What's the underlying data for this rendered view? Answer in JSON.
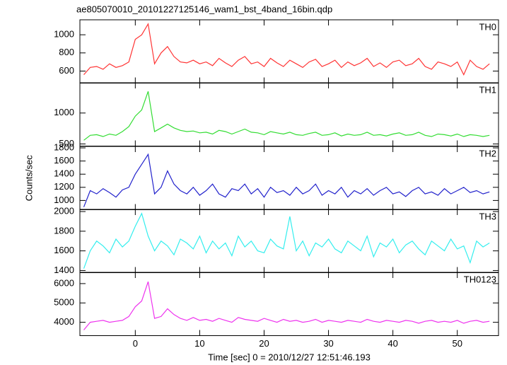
{
  "chart_data": [
    {
      "type": "line",
      "title": "ae805070010_20101227125146_wam1_bst_4band_16bin.qdp",
      "label": "TH0",
      "color": "#ff3333",
      "x": [
        -8,
        -7,
        -6,
        -5,
        -4,
        -3,
        -2,
        -1,
        0,
        1,
        2,
        3,
        4,
        5,
        6,
        7,
        8,
        9,
        10,
        11,
        12,
        13,
        14,
        15,
        16,
        17,
        18,
        19,
        20,
        21,
        22,
        23,
        24,
        25,
        26,
        27,
        28,
        29,
        30,
        31,
        32,
        33,
        34,
        35,
        36,
        37,
        38,
        39,
        40,
        41,
        42,
        43,
        44,
        45,
        46,
        47,
        48,
        49,
        50,
        51,
        52,
        53,
        54,
        55
      ],
      "values": [
        560,
        640,
        650,
        620,
        680,
        640,
        660,
        700,
        950,
        1000,
        1120,
        680,
        800,
        870,
        760,
        700,
        690,
        720,
        680,
        700,
        660,
        740,
        690,
        650,
        720,
        760,
        680,
        700,
        650,
        740,
        690,
        650,
        720,
        680,
        640,
        700,
        730,
        650,
        680,
        720,
        640,
        700,
        660,
        690,
        740,
        650,
        690,
        640,
        700,
        720,
        660,
        680,
        740,
        650,
        620,
        700,
        680,
        650,
        700,
        560,
        720,
        650,
        620,
        680
      ],
      "ylim": [
        467,
        1165
      ],
      "yticks": [
        600,
        800,
        1000
      ]
    },
    {
      "type": "line",
      "label": "TH1",
      "color": "#33dd33",
      "x": [
        -8,
        -7,
        -6,
        -5,
        -4,
        -3,
        -2,
        -1,
        0,
        1,
        2,
        3,
        4,
        5,
        6,
        7,
        8,
        9,
        10,
        11,
        12,
        13,
        14,
        15,
        16,
        17,
        18,
        19,
        20,
        21,
        22,
        23,
        24,
        25,
        26,
        27,
        28,
        29,
        30,
        31,
        32,
        33,
        34,
        35,
        36,
        37,
        38,
        39,
        40,
        41,
        42,
        43,
        44,
        45,
        46,
        47,
        48,
        49,
        50,
        51,
        52,
        53,
        54,
        55
      ],
      "values": [
        560,
        640,
        650,
        620,
        660,
        640,
        700,
        780,
        950,
        1050,
        1350,
        700,
        760,
        820,
        760,
        720,
        700,
        710,
        680,
        690,
        660,
        720,
        700,
        660,
        700,
        740,
        690,
        680,
        650,
        700,
        680,
        660,
        690,
        650,
        640,
        670,
        690,
        640,
        650,
        680,
        630,
        660,
        640,
        650,
        690,
        640,
        650,
        630,
        660,
        680,
        640,
        650,
        690,
        640,
        620,
        660,
        650,
        630,
        660,
        620,
        650,
        640,
        620,
        640
      ],
      "ylim": [
        466,
        1489
      ],
      "yticks": [
        500,
        1000
      ]
    },
    {
      "type": "line",
      "label": "TH2",
      "color": "#2222cc",
      "ylabel": "Counts/sec",
      "x": [
        -8,
        -7,
        -6,
        -5,
        -4,
        -3,
        -2,
        -1,
        0,
        1,
        2,
        3,
        4,
        5,
        6,
        7,
        8,
        9,
        10,
        11,
        12,
        13,
        14,
        15,
        16,
        17,
        18,
        19,
        20,
        21,
        22,
        23,
        24,
        25,
        26,
        27,
        28,
        29,
        30,
        31,
        32,
        33,
        34,
        35,
        36,
        37,
        38,
        39,
        40,
        41,
        42,
        43,
        44,
        45,
        46,
        47,
        48,
        49,
        50,
        51,
        52,
        53,
        54,
        55
      ],
      "values": [
        900,
        1150,
        1100,
        1180,
        1120,
        1050,
        1160,
        1200,
        1400,
        1550,
        1700,
        1100,
        1200,
        1450,
        1250,
        1150,
        1100,
        1200,
        1080,
        1150,
        1250,
        1100,
        1050,
        1180,
        1150,
        1250,
        1100,
        1180,
        1050,
        1200,
        1120,
        1150,
        1080,
        1200,
        1100,
        1150,
        1250,
        1080,
        1150,
        1100,
        1200,
        1050,
        1150,
        1100,
        1180,
        1080,
        1150,
        1200,
        1100,
        1130,
        1060,
        1150,
        1200,
        1100,
        1130,
        1080,
        1180,
        1100,
        1150,
        1200,
        1120,
        1150,
        1100,
        1130
      ],
      "ylim": [
        859,
        1822
      ],
      "yticks": [
        1000,
        1200,
        1400,
        1600,
        1800
      ]
    },
    {
      "type": "line",
      "label": "TH3",
      "color": "#33eeee",
      "x": [
        -8,
        -7,
        -6,
        -5,
        -4,
        -3,
        -2,
        -1,
        0,
        1,
        2,
        3,
        4,
        5,
        6,
        7,
        8,
        9,
        10,
        11,
        12,
        13,
        14,
        15,
        16,
        17,
        18,
        19,
        20,
        21,
        22,
        23,
        24,
        25,
        26,
        27,
        28,
        29,
        30,
        31,
        32,
        33,
        34,
        35,
        36,
        37,
        38,
        39,
        40,
        41,
        42,
        43,
        44,
        45,
        46,
        47,
        48,
        49,
        50,
        51,
        52,
        53,
        54,
        55
      ],
      "values": [
        1420,
        1600,
        1700,
        1650,
        1580,
        1720,
        1640,
        1700,
        1850,
        1980,
        1750,
        1600,
        1700,
        1650,
        1560,
        1720,
        1680,
        1620,
        1750,
        1580,
        1700,
        1620,
        1680,
        1550,
        1750,
        1640,
        1700,
        1600,
        1580,
        1720,
        1650,
        1620,
        1950,
        1600,
        1700,
        1550,
        1680,
        1640,
        1720,
        1620,
        1580,
        1700,
        1650,
        1600,
        1750,
        1540,
        1680,
        1640,
        1720,
        1580,
        1660,
        1700,
        1620,
        1560,
        1700,
        1650,
        1600,
        1720,
        1620,
        1650,
        1480,
        1700,
        1640,
        1680
      ],
      "ylim": [
        1378,
        2022
      ],
      "yticks": [
        1400,
        1600,
        1800,
        2000
      ]
    },
    {
      "type": "line",
      "label": "TH0123",
      "color": "#ee33ee",
      "xlabel": "Time [sec] 0 = 2010/12/27 12:51:46.193",
      "x": [
        -8,
        -7,
        -6,
        -5,
        -4,
        -3,
        -2,
        -1,
        0,
        1,
        2,
        3,
        4,
        5,
        6,
        7,
        8,
        9,
        10,
        11,
        12,
        13,
        14,
        15,
        16,
        17,
        18,
        19,
        20,
        21,
        22,
        23,
        24,
        25,
        26,
        27,
        28,
        29,
        30,
        31,
        32,
        33,
        34,
        35,
        36,
        37,
        38,
        39,
        40,
        41,
        42,
        43,
        44,
        45,
        46,
        47,
        48,
        49,
        50,
        51,
        52,
        53,
        54,
        55
      ],
      "values": [
        3600,
        4000,
        4050,
        4100,
        4000,
        4050,
        4100,
        4300,
        4800,
        5100,
        6100,
        4200,
        4300,
        4700,
        4400,
        4200,
        4100,
        4250,
        4100,
        4150,
        4050,
        4200,
        4100,
        4000,
        4250,
        4150,
        4100,
        4050,
        4200,
        4100,
        4000,
        4150,
        4050,
        4100,
        4000,
        4050,
        4150,
        4000,
        4100,
        4050,
        4000,
        4100,
        4050,
        4000,
        4150,
        4050,
        4000,
        4100,
        4050,
        4000,
        4100,
        4050,
        3950,
        4050,
        4100,
        4000,
        4050,
        4000,
        4100,
        3950,
        4050,
        4100,
        4000,
        4050
      ],
      "ylim": [
        3309,
        6582
      ],
      "yticks": [
        4000,
        5000,
        6000
      ],
      "xlim": [
        -8.6,
        56.4
      ],
      "xticks": [
        0,
        10,
        20,
        30,
        40,
        50
      ]
    }
  ]
}
